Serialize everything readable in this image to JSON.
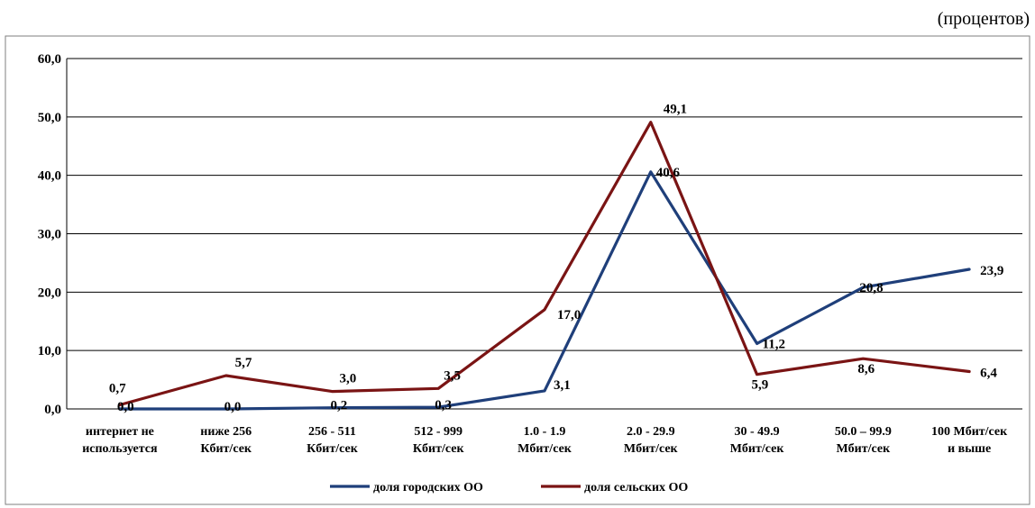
{
  "unit_label": "(процентов)",
  "chart_data": {
    "type": "line",
    "categories": [
      [
        "интернет не",
        "используется"
      ],
      [
        "ниже 256",
        "Кбит/сек"
      ],
      [
        "256 - 511",
        "Кбит/сек"
      ],
      [
        "512 - 999",
        "Кбит/сек"
      ],
      [
        "1.0 - 1.9",
        "Мбит/сек"
      ],
      [
        "2.0 - 29.9",
        "Мбит/сек"
      ],
      [
        "30 - 49.9",
        "Мбит/сек"
      ],
      [
        "50.0 – 99.9",
        "Мбит/сек"
      ],
      [
        "100 Мбит/сек",
        "и выше"
      ]
    ],
    "series": [
      {
        "name": "доля городских ОО",
        "color": "#1f3f7a",
        "values": [
          0.0,
          0.0,
          0.2,
          0.3,
          3.1,
          40.6,
          11.2,
          20.8,
          23.9
        ],
        "labels": [
          "0,0",
          "0,0",
          "0,2",
          "0,3",
          "3,1",
          "40,6",
          "11,2",
          "20,8",
          "23,9"
        ]
      },
      {
        "name": "доля сельских ОО",
        "color": "#7a1414",
        "values": [
          0.7,
          5.7,
          3.0,
          3.5,
          17.0,
          49.1,
          5.9,
          8.6,
          6.4
        ],
        "labels": [
          "0,7",
          "5,7",
          "3,0",
          "3,5",
          "17,0",
          "49,1",
          "5,9",
          "8,6",
          "6,4"
        ]
      }
    ],
    "ylim": [
      0,
      60
    ],
    "yticks": [
      0,
      10,
      20,
      30,
      40,
      50,
      60
    ],
    "ytick_labels": [
      "0,0",
      "10,0",
      "20,0",
      "30,0",
      "40,0",
      "50,0",
      "60,0"
    ],
    "grid": true,
    "legend_position": "bottom"
  }
}
